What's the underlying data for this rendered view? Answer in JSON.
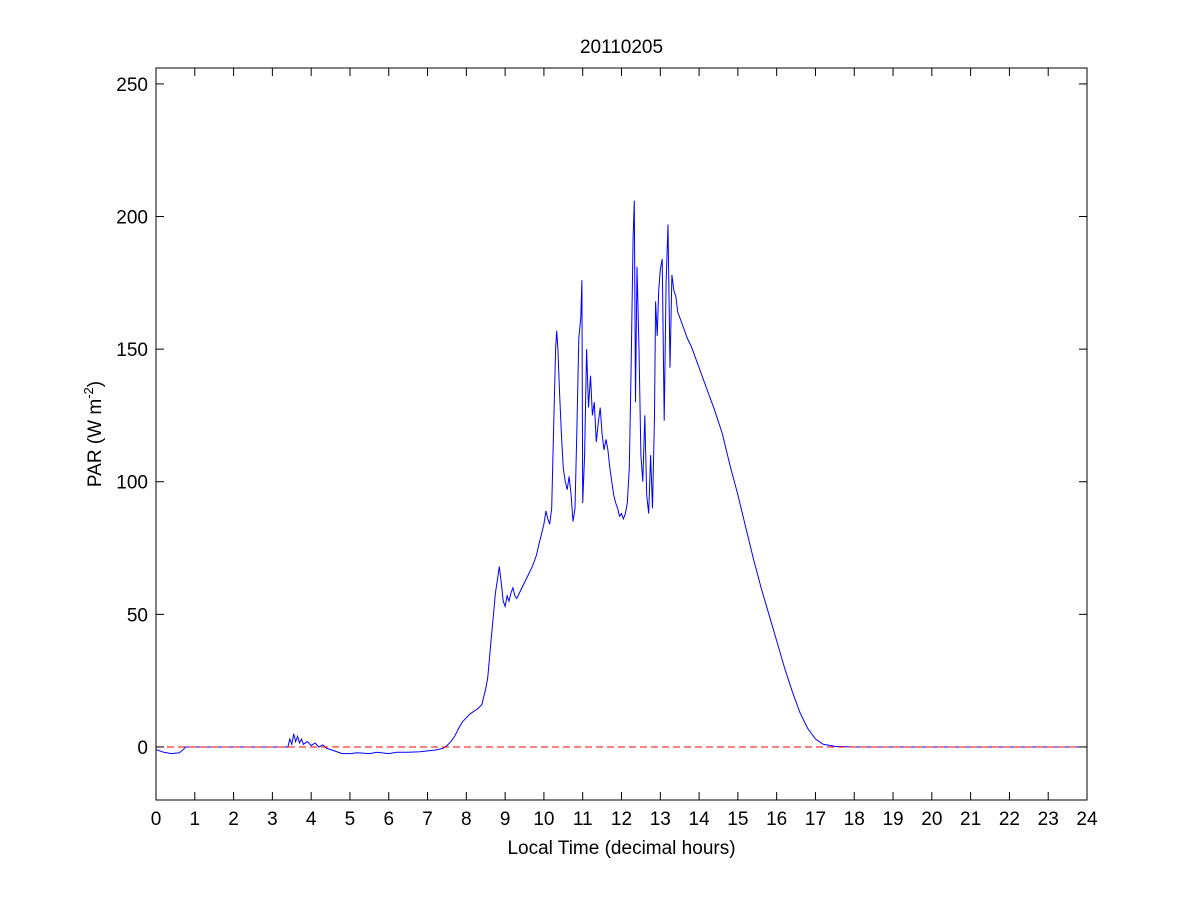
{
  "chart_data": {
    "type": "line",
    "title": "20110205",
    "xlabel": "Local Time (decimal hours)",
    "ylabel": {
      "main": "PAR (W m",
      "superscript": "-2",
      "closing": ")"
    },
    "xlim": [
      0,
      24
    ],
    "ylim": [
      -20,
      256
    ],
    "xticks": [
      0,
      1,
      2,
      3,
      4,
      5,
      6,
      7,
      8,
      9,
      10,
      11,
      12,
      13,
      14,
      15,
      16,
      17,
      18,
      19,
      20,
      21,
      22,
      23,
      24
    ],
    "yticks": [
      0,
      50,
      100,
      150,
      200,
      250
    ],
    "grid": false,
    "legend": "none",
    "series": [
      {
        "color": "#0000ff",
        "style": "solid",
        "points": [
          [
            0.0,
            -1.0
          ],
          [
            0.2,
            -2.0
          ],
          [
            0.4,
            -2.5
          ],
          [
            0.6,
            -2.2
          ],
          [
            0.72,
            -0.8
          ],
          [
            0.75,
            0.0
          ],
          [
            3.4,
            0.0
          ],
          [
            3.45,
            3.0
          ],
          [
            3.5,
            1.0
          ],
          [
            3.55,
            5.0
          ],
          [
            3.6,
            2.0
          ],
          [
            3.65,
            4.0
          ],
          [
            3.7,
            1.5
          ],
          [
            3.75,
            3.0
          ],
          [
            3.8,
            1.0
          ],
          [
            3.9,
            2.0
          ],
          [
            4.0,
            0.5
          ],
          [
            4.1,
            1.5
          ],
          [
            4.2,
            0.0
          ],
          [
            4.3,
            0.8
          ],
          [
            4.4,
            -0.5
          ],
          [
            4.5,
            -1.0
          ],
          [
            4.6,
            -1.5
          ],
          [
            4.8,
            -2.5
          ],
          [
            5.0,
            -2.5
          ],
          [
            5.2,
            -2.2
          ],
          [
            5.5,
            -2.5
          ],
          [
            5.7,
            -2.0
          ],
          [
            6.0,
            -2.5
          ],
          [
            6.2,
            -2.0
          ],
          [
            6.5,
            -2.0
          ],
          [
            6.8,
            -1.8
          ],
          [
            7.0,
            -1.5
          ],
          [
            7.2,
            -1.2
          ],
          [
            7.4,
            -0.5
          ],
          [
            7.5,
            0.5
          ],
          [
            7.6,
            2.0
          ],
          [
            7.7,
            4.0
          ],
          [
            7.8,
            7.0
          ],
          [
            7.9,
            9.5
          ],
          [
            8.0,
            11.0
          ],
          [
            8.1,
            12.5
          ],
          [
            8.2,
            13.5
          ],
          [
            8.3,
            14.5
          ],
          [
            8.4,
            16.0
          ],
          [
            8.5,
            22.0
          ],
          [
            8.55,
            26.0
          ],
          [
            8.6,
            34.0
          ],
          [
            8.65,
            42.0
          ],
          [
            8.7,
            50.0
          ],
          [
            8.75,
            58.0
          ],
          [
            8.8,
            63.0
          ],
          [
            8.85,
            68.0
          ],
          [
            8.9,
            62.0
          ],
          [
            8.95,
            55.0
          ],
          [
            9.0,
            53.0
          ],
          [
            9.05,
            57.0
          ],
          [
            9.1,
            55.0
          ],
          [
            9.15,
            58.0
          ],
          [
            9.2,
            60.0
          ],
          [
            9.25,
            57.0
          ],
          [
            9.3,
            56.0
          ],
          [
            9.4,
            59.0
          ],
          [
            9.5,
            62.0
          ],
          [
            9.6,
            65.0
          ],
          [
            9.7,
            68.0
          ],
          [
            9.8,
            72.0
          ],
          [
            9.9,
            78.0
          ],
          [
            10.0,
            84.0
          ],
          [
            10.05,
            89.0
          ],
          [
            10.1,
            86.0
          ],
          [
            10.15,
            84.0
          ],
          [
            10.2,
            90.0
          ],
          [
            10.25,
            120.0
          ],
          [
            10.3,
            150.0
          ],
          [
            10.33,
            157.0
          ],
          [
            10.36,
            150.0
          ],
          [
            10.4,
            135.0
          ],
          [
            10.45,
            118.0
          ],
          [
            10.5,
            105.0
          ],
          [
            10.55,
            100.0
          ],
          [
            10.6,
            97.0
          ],
          [
            10.65,
            102.0
          ],
          [
            10.7,
            95.0
          ],
          [
            10.75,
            85.0
          ],
          [
            10.8,
            90.0
          ],
          [
            10.85,
            120.0
          ],
          [
            10.9,
            154.0
          ],
          [
            10.95,
            162.0
          ],
          [
            10.98,
            176.0
          ],
          [
            11.0,
            92.0
          ],
          [
            11.05,
            110.0
          ],
          [
            11.1,
            150.0
          ],
          [
            11.15,
            128.0
          ],
          [
            11.2,
            140.0
          ],
          [
            11.25,
            125.0
          ],
          [
            11.3,
            130.0
          ],
          [
            11.35,
            115.0
          ],
          [
            11.4,
            122.0
          ],
          [
            11.45,
            128.0
          ],
          [
            11.5,
            118.0
          ],
          [
            11.55,
            112.0
          ],
          [
            11.6,
            116.0
          ],
          [
            11.65,
            112.0
          ],
          [
            11.7,
            105.0
          ],
          [
            11.75,
            100.0
          ],
          [
            11.8,
            95.0
          ],
          [
            11.85,
            92.0
          ],
          [
            11.9,
            90.0
          ],
          [
            11.95,
            87.0
          ],
          [
            12.0,
            88.0
          ],
          [
            12.05,
            86.0
          ],
          [
            12.1,
            88.0
          ],
          [
            12.15,
            92.0
          ],
          [
            12.2,
            105.0
          ],
          [
            12.25,
            145.0
          ],
          [
            12.3,
            192.0
          ],
          [
            12.33,
            206.0
          ],
          [
            12.36,
            130.0
          ],
          [
            12.4,
            181.0
          ],
          [
            12.45,
            150.0
          ],
          [
            12.5,
            110.0
          ],
          [
            12.55,
            100.0
          ],
          [
            12.6,
            125.0
          ],
          [
            12.65,
            95.0
          ],
          [
            12.7,
            88.0
          ],
          [
            12.75,
            110.0
          ],
          [
            12.8,
            90.0
          ],
          [
            12.85,
            125.0
          ],
          [
            12.88,
            168.0
          ],
          [
            12.92,
            155.0
          ],
          [
            12.96,
            172.0
          ],
          [
            13.0,
            180.0
          ],
          [
            13.05,
            184.0
          ],
          [
            13.1,
            123.0
          ],
          [
            13.15,
            175.0
          ],
          [
            13.2,
            197.0
          ],
          [
            13.25,
            143.0
          ],
          [
            13.3,
            178.0
          ],
          [
            13.35,
            172.0
          ],
          [
            13.4,
            170.0
          ],
          [
            13.45,
            164.0
          ],
          [
            13.5,
            162.0
          ],
          [
            13.6,
            158.0
          ],
          [
            13.7,
            154.0
          ],
          [
            13.8,
            151.0
          ],
          [
            13.9,
            147.0
          ],
          [
            14.0,
            143.0
          ],
          [
            14.2,
            135.0
          ],
          [
            14.4,
            127.0
          ],
          [
            14.6,
            118.0
          ],
          [
            14.8,
            106.0
          ],
          [
            15.0,
            95.0
          ],
          [
            15.2,
            83.0
          ],
          [
            15.4,
            71.0
          ],
          [
            15.6,
            60.0
          ],
          [
            15.8,
            50.0
          ],
          [
            16.0,
            40.0
          ],
          [
            16.2,
            30.0
          ],
          [
            16.4,
            21.0
          ],
          [
            16.6,
            13.0
          ],
          [
            16.8,
            7.0
          ],
          [
            17.0,
            3.0
          ],
          [
            17.2,
            1.0
          ],
          [
            17.5,
            0.2
          ],
          [
            18.0,
            0.0
          ],
          [
            24.0,
            0.0
          ]
        ]
      },
      {
        "color": "#ff0000",
        "style": "dashed",
        "points": [
          [
            0,
            0
          ],
          [
            24,
            0
          ]
        ]
      }
    ]
  }
}
